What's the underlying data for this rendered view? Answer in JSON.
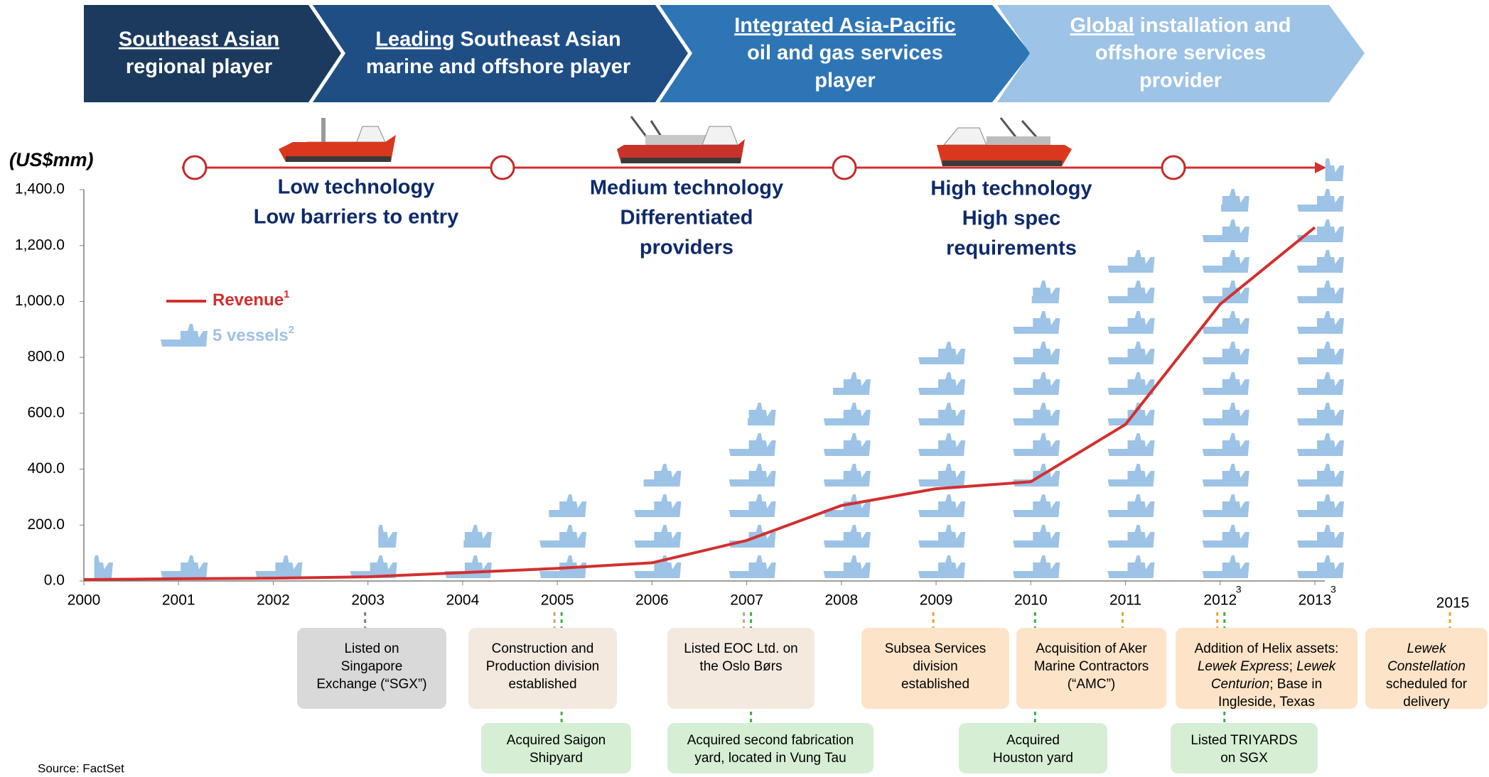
{
  "header": {
    "stages": [
      {
        "color": "#1b3a5e",
        "lines": [
          [
            {
              "text": "Southeast Asian",
              "underline": true
            }
          ],
          "regional player"
        ]
      },
      {
        "color": "#1f4e85",
        "lines": [
          [
            {
              "text": "Leading",
              "underline": true
            },
            {
              "text": " Southeast Asian"
            }
          ],
          "marine and offshore player"
        ]
      },
      {
        "color": "#2e75b6",
        "lines": [
          [
            {
              "text": "Integrated Asia-Pacific",
              "underline": true
            }
          ],
          "oil and gas services",
          "player"
        ]
      },
      {
        "color": "#9dc3e6",
        "lines": [
          [
            {
              "text": "Global",
              "underline": true
            },
            {
              "text": " installation and"
            }
          ],
          "offshore services",
          "provider"
        ]
      }
    ]
  },
  "timeline": {
    "phases": [
      {
        "lines": [
          "Low technology",
          "Low barriers to entry"
        ]
      },
      {
        "lines": [
          "Medium technology",
          "Differentiated",
          "providers"
        ]
      },
      {
        "lines": [
          "High technology",
          "High spec",
          "requirements"
        ]
      }
    ]
  },
  "chart_data": {
    "type": "line",
    "y_label": "(US$mm)",
    "x": [
      2000,
      2001,
      2002,
      2003,
      2004,
      2005,
      2006,
      2007,
      2008,
      2009,
      2010,
      2011,
      2012,
      2013
    ],
    "x_notes": [
      null,
      null,
      null,
      null,
      null,
      null,
      null,
      null,
      null,
      null,
      null,
      null,
      "3",
      "3"
    ],
    "xlim": [
      2000,
      2013
    ],
    "ylim": [
      0,
      1400
    ],
    "yticks": [
      {
        "value": 0,
        "label": "0.0"
      },
      {
        "value": 200,
        "label": "200.0"
      },
      {
        "value": 400,
        "label": "400.0"
      },
      {
        "value": 600,
        "label": "600.0"
      },
      {
        "value": 800,
        "label": "800.0"
      },
      {
        "value": 1000,
        "label": "1,000.0"
      },
      {
        "value": 1200,
        "label": "1,200.0"
      },
      {
        "value": 1400,
        "label": "1,400.0"
      }
    ],
    "series": [
      {
        "name": "Revenue",
        "note": "1",
        "color": "#d32f2f",
        "values": [
          5,
          8,
          10,
          15,
          30,
          45,
          65,
          145,
          270,
          330,
          355,
          560,
          990,
          1265
        ]
      },
      {
        "name": "5 vessels",
        "note": "2",
        "color": "#9dc3e6",
        "values": [
          0.4,
          1,
          1,
          1.4,
          1.6,
          2.8,
          3.8,
          5.6,
          6.8,
          8,
          9.6,
          11,
          12.6,
          13.4
        ]
      }
    ]
  },
  "events": [
    {
      "year": 2003,
      "color": "#d9d9d9",
      "line_color": "#7f7f7f",
      "lines": [
        "Listed on",
        "Singapore",
        "Exchange (“SGX”)"
      ]
    },
    {
      "year": 2005,
      "color": "#f3e9de",
      "line_color": "#c4a484",
      "lines": [
        "Construction and",
        "Production division",
        "established"
      ]
    },
    {
      "year": 2005,
      "color": "#d6efd4",
      "line_color": "#3cb043",
      "lines": [
        "Acquired Saigon",
        "Shipyard"
      ]
    },
    {
      "year": 2007,
      "color": "#f3e9de",
      "line_color": "#c4a484",
      "lines": [
        "Listed EOC Ltd. on",
        "the Oslo Børs"
      ]
    },
    {
      "year": 2007,
      "color": "#d6efd4",
      "line_color": "#3cb043",
      "lines": [
        "Acquired second fabrication",
        "yard, located in Vung Tau"
      ]
    },
    {
      "year": 2009,
      "color": "#fde4c8",
      "line_color": "#f0a030",
      "lines": [
        "Subsea Services",
        "division",
        "established"
      ]
    },
    {
      "year": 2011,
      "color": "#fde4c8",
      "line_color": "#f0a030",
      "lines": [
        "Acquisition of Aker",
        "Marine Contractors",
        "(“AMC”)"
      ]
    },
    {
      "year": 2010,
      "color": "#d6efd4",
      "line_color": "#3cb043",
      "lines": [
        "Acquired",
        "Houston yard"
      ]
    },
    {
      "year": 2012,
      "color": "#fde4c8",
      "line_color": "#f0a030",
      "lines": [
        "Addition of Helix assets:",
        [
          {
            "text": "Lewek Express",
            "italic": true
          },
          {
            "text": "; "
          },
          {
            "text": "Lewek",
            "italic": true
          }
        ],
        [
          {
            "text": "Centurion",
            "italic": true
          },
          {
            "text": "; Base in"
          }
        ],
        "Ingleside, Texas"
      ]
    },
    {
      "year": 2012,
      "color": "#d6efd4",
      "line_color": "#3cb043",
      "lines": [
        "Listed TRIYARDS",
        "on SGX"
      ]
    },
    {
      "year": 2015,
      "color": "#fde4c8",
      "line_color": "#f0a030",
      "lines": [
        [
          {
            "text": "Lewek",
            "italic": true
          }
        ],
        [
          {
            "text": "Constellation",
            "italic": true
          }
        ],
        "scheduled for",
        "delivery"
      ]
    }
  ],
  "footer": {
    "source": "Source: FactSet"
  }
}
